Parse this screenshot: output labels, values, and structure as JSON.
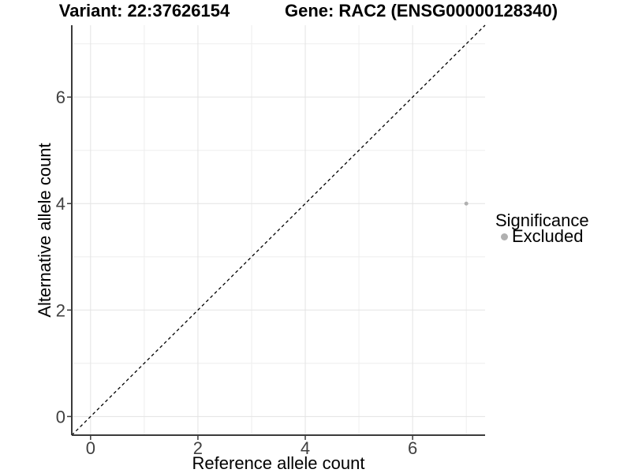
{
  "header": {
    "variant_title": "Variant: 22:37626154",
    "gene_title": "Gene: RAC2 (ENSG00000128340)"
  },
  "chart_data": {
    "type": "scatter",
    "xlabel": "Reference allele count",
    "ylabel": "Alternative allele count",
    "xlim": [
      -0.35,
      7.35
    ],
    "ylim": [
      -0.35,
      7.35
    ],
    "x_ticks": [
      0,
      2,
      4,
      6
    ],
    "x_tick_labels": [
      "0",
      "2",
      "4",
      "6"
    ],
    "y_ticks": [
      0,
      2,
      4,
      6
    ],
    "y_tick_labels": [
      "0",
      "2",
      "4",
      "6"
    ],
    "grid": {
      "major_x": [
        0,
        2,
        4,
        6
      ],
      "minor_x": [
        1,
        3,
        5,
        7
      ],
      "major_y": [
        0,
        2,
        4,
        6
      ],
      "minor_y": [
        1,
        3,
        5,
        7
      ]
    },
    "reference_line": {
      "type": "identity",
      "slope": 1,
      "intercept": 0,
      "style": "dashed",
      "color": "#000000"
    },
    "series": [
      {
        "name": "Excluded",
        "points": [
          {
            "x": 7,
            "y": 4
          }
        ],
        "color": "#b0b0b0"
      }
    ],
    "legend": {
      "title": "Significance",
      "position": "right",
      "items": [
        {
          "label": "Excluded",
          "color": "#b0b0b0"
        }
      ]
    },
    "colors": {
      "background": "#ffffff",
      "grid_major": "#e3e3e3",
      "grid_minor": "#eeeeee",
      "axis_line": "#3b3b3b",
      "tick_mark": "#3b3b3b",
      "tick_label": "#404040",
      "point": "#b0b0b0"
    }
  }
}
